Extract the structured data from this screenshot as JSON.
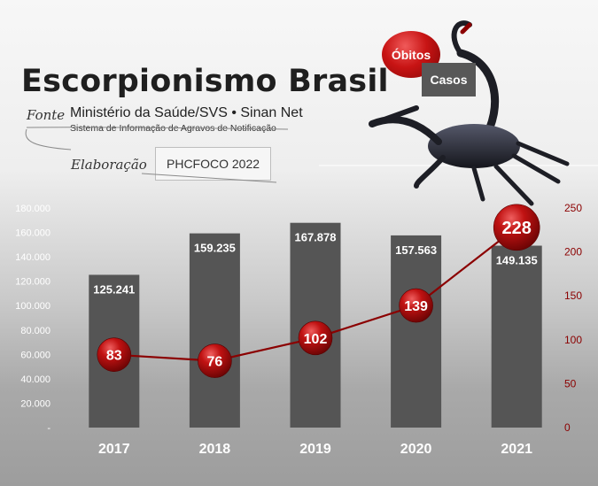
{
  "header": {
    "title": "Escorpionismo Brasil",
    "fonte_label": "Fonte",
    "source_line1": "Ministério da Saúde/SVS • Sinan Net",
    "source_line2": "Sistema de Informação de Agravos de Notificação",
    "elaboracao_label": "Elaboração",
    "elaboracao_value": "PHCFOCO 2022"
  },
  "legend": {
    "obitos": "Óbitos",
    "casos": "Casos"
  },
  "chart_data": {
    "type": "bar",
    "categories": [
      "2017",
      "2018",
      "2019",
      "2020",
      "2021"
    ],
    "series": [
      {
        "name": "Casos",
        "values": [
          125241,
          159235,
          167878,
          157563,
          149135
        ],
        "labels": [
          "125.241",
          "159.235",
          "167.878",
          "157.563",
          "149.135"
        ],
        "color": "#555555"
      },
      {
        "name": "Óbitos",
        "type": "line",
        "values": [
          83,
          76,
          102,
          139,
          228
        ],
        "color": "#8b0000"
      }
    ],
    "y_left": {
      "min": 0,
      "max": 180000,
      "ticks": [
        "-",
        "20.000",
        "40.000",
        "60.000",
        "80.000",
        "100.000",
        "120.000",
        "140.000",
        "160.000",
        "180.000"
      ]
    },
    "y_right": {
      "min": 0,
      "max": 250,
      "ticks": [
        "0",
        "50",
        "100",
        "150",
        "200",
        "250"
      ]
    }
  }
}
